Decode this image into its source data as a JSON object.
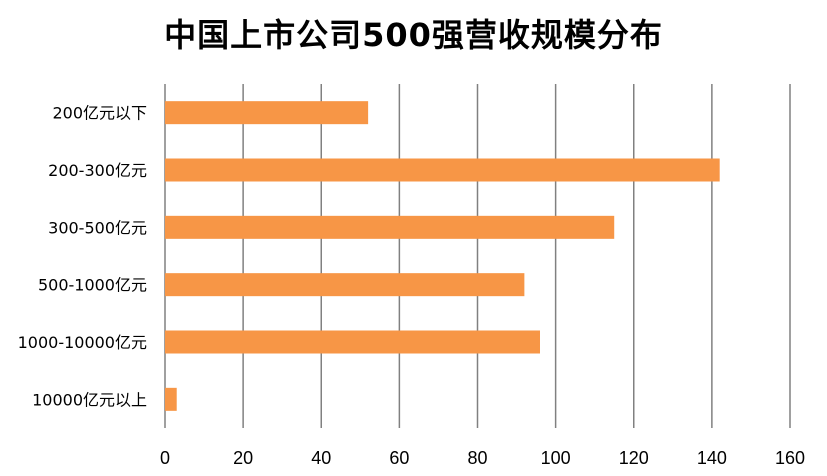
{
  "title": "中国上市公司500强营收规模分布",
  "colors": {
    "bar": "#F79646",
    "grid": "#808080",
    "text": "#000000",
    "background": "#FFFFFF"
  },
  "chart_data": {
    "type": "bar",
    "orientation": "horizontal",
    "title": "中国上市公司500强营收规模分布",
    "xlabel": "",
    "ylabel": "",
    "categories": [
      "200亿元以下",
      "200-300亿元",
      "300-500亿元",
      "500-1000亿元",
      "1000-10000亿元",
      "10000亿元以上"
    ],
    "values": [
      52,
      142,
      115,
      92,
      96,
      3
    ],
    "xlim": [
      0,
      160
    ],
    "xticks": [
      0,
      20,
      40,
      60,
      80,
      100,
      120,
      140,
      160
    ],
    "grid": true,
    "legend": "none"
  }
}
